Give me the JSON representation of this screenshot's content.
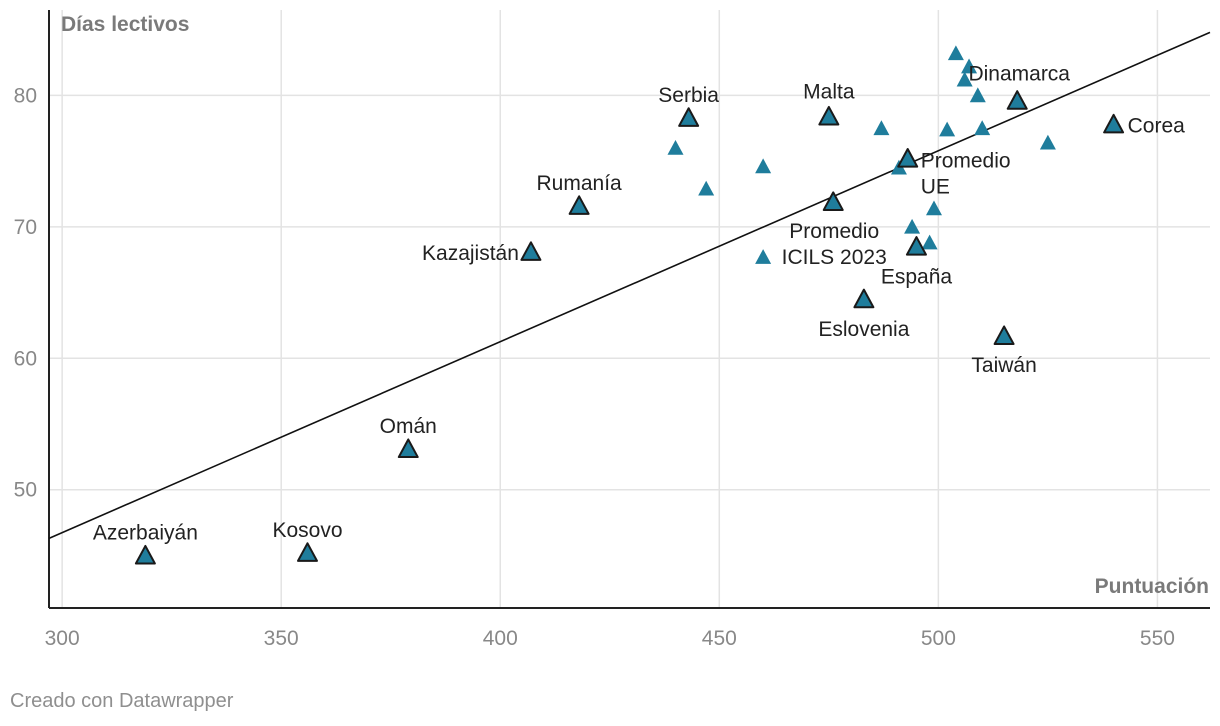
{
  "colors": {
    "marker": "#1f7d9c",
    "highlight_stroke": "#1a1a1a",
    "regression_line": "#111111",
    "grid": "#e3e3e3"
  },
  "footer": "Creado con Datawrapper",
  "chart_data": {
    "type": "scatter",
    "xlabel": "Puntuación",
    "ylabel": "Días lectivos",
    "xlim": [
      297,
      562
    ],
    "ylim": [
      41,
      86.5
    ],
    "x_ticks": [
      "300",
      "350",
      "400",
      "450",
      "500",
      "550"
    ],
    "y_ticks": [
      "50",
      "60",
      "70",
      "80"
    ],
    "grid": true,
    "trendline": {
      "x": [
        297,
        562
      ],
      "y": [
        46.3,
        84.8
      ]
    },
    "points": [
      {
        "x": 319,
        "y": 45.0,
        "label": "Azerbaiyán",
        "highlight": true
      },
      {
        "x": 356,
        "y": 45.2,
        "label": "Kosovo",
        "highlight": true
      },
      {
        "x": 379,
        "y": 53.1,
        "label": "Omán",
        "highlight": true
      },
      {
        "x": 407,
        "y": 68.1,
        "label": "Kazajistán",
        "highlight": true
      },
      {
        "x": 418,
        "y": 71.6,
        "label": "Rumanía",
        "highlight": true
      },
      {
        "x": 443,
        "y": 78.3,
        "label": "Serbia",
        "highlight": true
      },
      {
        "x": 475,
        "y": 78.4,
        "label": "Malta",
        "highlight": true
      },
      {
        "x": 476,
        "y": 71.9,
        "label": "Promedio ICILS 2023",
        "highlight": true
      },
      {
        "x": 483,
        "y": 64.5,
        "label": "Eslovenia",
        "highlight": true
      },
      {
        "x": 493,
        "y": 75.2,
        "label": "Promedio UE",
        "highlight": true
      },
      {
        "x": 495,
        "y": 68.5,
        "label": "España",
        "highlight": true
      },
      {
        "x": 515,
        "y": 61.7,
        "label": "Taiwán",
        "highlight": true
      },
      {
        "x": 518,
        "y": 79.6,
        "label": "Dinamarca",
        "highlight": true
      },
      {
        "x": 540,
        "y": 77.8,
        "label": "Corea",
        "highlight": true
      },
      {
        "x": 440,
        "y": 76.0,
        "label": "",
        "highlight": false
      },
      {
        "x": 447,
        "y": 72.9,
        "label": "",
        "highlight": false
      },
      {
        "x": 460,
        "y": 74.6,
        "label": "",
        "highlight": false
      },
      {
        "x": 460,
        "y": 67.7,
        "label": "",
        "highlight": false
      },
      {
        "x": 487,
        "y": 77.5,
        "label": "",
        "highlight": false
      },
      {
        "x": 491,
        "y": 74.5,
        "label": "",
        "highlight": false
      },
      {
        "x": 494,
        "y": 70.0,
        "label": "",
        "highlight": false
      },
      {
        "x": 498,
        "y": 68.8,
        "label": "",
        "highlight": false
      },
      {
        "x": 499,
        "y": 71.4,
        "label": "",
        "highlight": false
      },
      {
        "x": 502,
        "y": 77.4,
        "label": "",
        "highlight": false
      },
      {
        "x": 504,
        "y": 83.2,
        "label": "",
        "highlight": false
      },
      {
        "x": 507,
        "y": 82.2,
        "label": "",
        "highlight": false
      },
      {
        "x": 506,
        "y": 81.2,
        "label": "",
        "highlight": false
      },
      {
        "x": 509,
        "y": 80.0,
        "label": "",
        "highlight": false
      },
      {
        "x": 510,
        "y": 77.5,
        "label": "",
        "highlight": false
      },
      {
        "x": 525,
        "y": 76.4,
        "label": "",
        "highlight": false
      }
    ]
  }
}
